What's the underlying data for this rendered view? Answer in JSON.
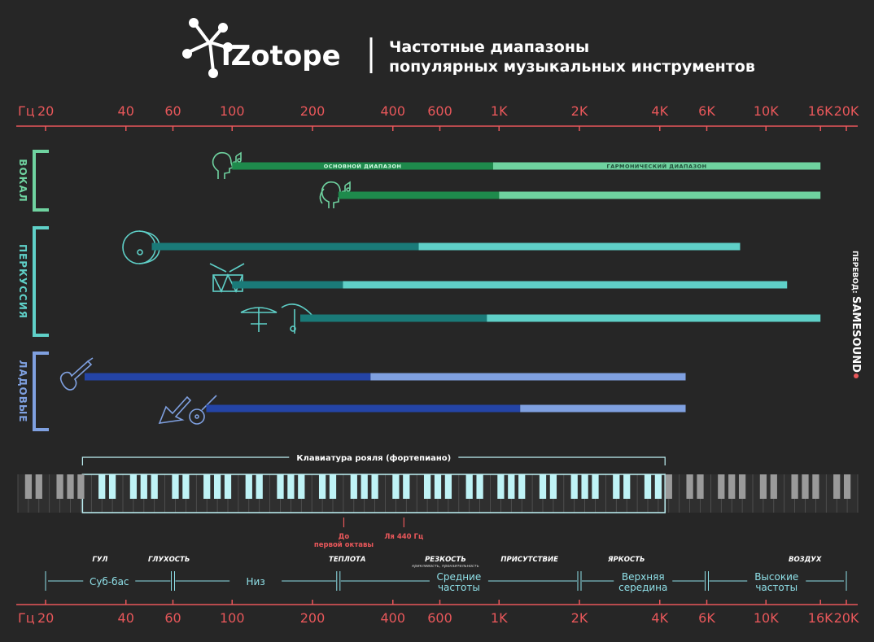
{
  "header": {
    "brand": "iZotope",
    "title_line1": "Частотные диапазоны",
    "title_line2": "популярных музыкальных инструментов"
  },
  "credit": {
    "label": "ПЕРЕВОД:",
    "brand": "SAMESOUND"
  },
  "colors": {
    "background": "#262626",
    "axis": "#e8575a",
    "vocal_dark": "#1e8a4c",
    "vocal_light": "#6fd3a0",
    "perc_dark": "#1a7a78",
    "perc_light": "#5fd0c8",
    "fret_dark": "#2444a6",
    "fret_light": "#7fa0e0",
    "piano_highlight": "#bff3f6",
    "piano_dim": "#9a9a9a",
    "zone_text": "#8fe0e8"
  },
  "chart_data": {
    "type": "bar",
    "x_scale": "log",
    "xlim": [
      20,
      20000
    ],
    "axis_unit_label": "Гц",
    "ticks": [
      {
        "v": 20,
        "label": "20"
      },
      {
        "v": 40,
        "label": "40"
      },
      {
        "v": 60,
        "label": "60"
      },
      {
        "v": 100,
        "label": "100"
      },
      {
        "v": 200,
        "label": "200"
      },
      {
        "v": 400,
        "label": "400"
      },
      {
        "v": 600,
        "label": "600"
      },
      {
        "v": 1000,
        "label": "1K"
      },
      {
        "v": 2000,
        "label": "2K"
      },
      {
        "v": 4000,
        "label": "4K"
      },
      {
        "v": 6000,
        "label": "6K"
      },
      {
        "v": 10000,
        "label": "10K"
      },
      {
        "v": 16000,
        "label": "16K"
      },
      {
        "v": 20000,
        "label": "20K"
      }
    ],
    "range_labels": {
      "fundamental": "ОСНОВНОЙ ДИАПАЗОН",
      "harmonic": "ГАРМОНИЧЕСКИЙ ДИАПАЗОН"
    },
    "groups": [
      {
        "name": "ВОКАЛ",
        "color": "vocal",
        "instruments": [
          {
            "icon": "male-voice-icon",
            "fundamental": [
              100,
              950
            ],
            "harmonic": [
              950,
              16000
            ]
          },
          {
            "icon": "female-voice-icon",
            "fundamental": [
              250,
              1000
            ],
            "harmonic": [
              1000,
              16000
            ]
          }
        ]
      },
      {
        "name": "ПЕРКУССИЯ",
        "color": "perc",
        "instruments": [
          {
            "icon": "kick-drum-icon",
            "fundamental": [
              50,
              500
            ],
            "harmonic": [
              500,
              8000
            ]
          },
          {
            "icon": "snare-drum-icon",
            "fundamental": [
              100,
              260
            ],
            "harmonic": [
              260,
              12000
            ]
          },
          {
            "icon": "cymbals-icon",
            "fundamental": [
              180,
              900
            ],
            "harmonic": [
              900,
              16000
            ]
          }
        ]
      },
      {
        "name": "ЛАДОВЫЕ",
        "color": "fret",
        "instruments": [
          {
            "icon": "bass-guitar-icon",
            "fundamental": [
              28,
              330
            ],
            "harmonic": [
              330,
              5000
            ]
          },
          {
            "icon": "guitar-icon",
            "fundamental": [
              80,
              1200
            ],
            "harmonic": [
              1200,
              5000
            ]
          }
        ]
      }
    ],
    "piano": {
      "label": "Клавиатура рояля (фортепиано)",
      "range": [
        27.5,
        4186
      ],
      "markers": [
        {
          "v": 262,
          "label_line1": "До",
          "label_line2": "первой октавы"
        },
        {
          "v": 440,
          "label_line1": "Ля 440 Гц",
          "label_line2": ""
        }
      ]
    },
    "zones": [
      {
        "name": "ГУЛ",
        "at": 32
      },
      {
        "name": "ГЛУХОСТЬ",
        "at": 58
      },
      {
        "name": "ТЕПЛОТА",
        "at": 270
      },
      {
        "name": "РЕЗКОСТЬ",
        "sub": "крикливость, пронзительность",
        "at": 630
      },
      {
        "name": "ПРИСУТСТВИЕ",
        "at": 1300
      },
      {
        "name": "ЯРКОСТЬ",
        "at": 3000
      },
      {
        "name": "ВОЗДУХ",
        "at": 14000
      }
    ],
    "bands": [
      {
        "range": [
          20,
          60
        ],
        "label1": "Суб-бас",
        "label2": ""
      },
      {
        "range": [
          60,
          250
        ],
        "label1": "Низ",
        "label2": ""
      },
      {
        "range": [
          250,
          2000
        ],
        "label1": "Средние",
        "label2": "частоты"
      },
      {
        "range": [
          2000,
          6000
        ],
        "label1": "Верхняя",
        "label2": "середина"
      },
      {
        "range": [
          6000,
          20000
        ],
        "label1": "Высокие",
        "label2": "частоты"
      }
    ]
  }
}
